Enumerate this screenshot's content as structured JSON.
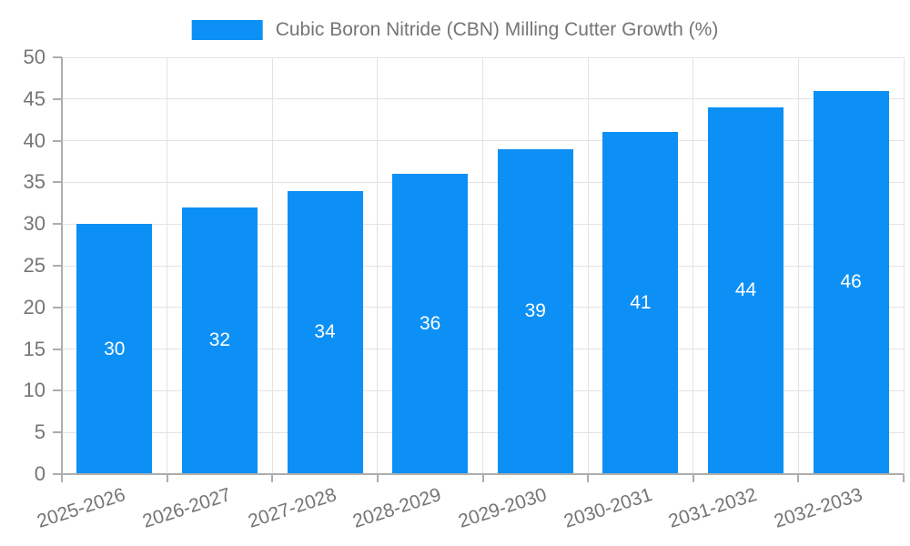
{
  "legend": {
    "label": "Cubic Boron Nitride (CBN) Milling Cutter Growth (%)"
  },
  "chart_data": {
    "type": "bar",
    "title": "Cubic Boron Nitride (CBN) Milling Cutter Growth (%)",
    "categories": [
      "2025-2026",
      "2026-2027",
      "2027-2028",
      "2028-2029",
      "2029-2030",
      "2030-2031",
      "2031-2032",
      "2032-2033"
    ],
    "series": [
      {
        "name": "Cubic Boron Nitride (CBN) Milling Cutter Growth (%)",
        "values": [
          30,
          32,
          34,
          36,
          39,
          41,
          44,
          46
        ]
      }
    ],
    "values": [
      30,
      32,
      34,
      36,
      39,
      41,
      44,
      46
    ],
    "value_labels": [
      "30",
      "32",
      "34",
      "36",
      "39",
      "41",
      "44",
      "46"
    ],
    "xlabel": "",
    "ylabel": "",
    "ylim": [
      0,
      50
    ],
    "y_ticks": [
      0,
      5,
      10,
      15,
      20,
      25,
      30,
      35,
      40,
      45,
      50
    ],
    "grid": true,
    "legend_position": "top",
    "x_label_rotation_deg": -18
  },
  "colors": {
    "bar": "#0D90F5",
    "text": "#757575",
    "value_label": "#FFFFFF",
    "gridline": "#E3E3E3",
    "axis_line": "#ADADAD",
    "background": "#FFFFFF"
  }
}
